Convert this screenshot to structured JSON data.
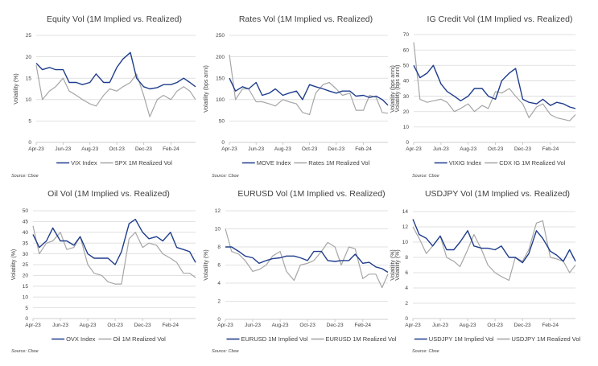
{
  "colors": {
    "implied": "#1f3d8c",
    "realized": "#a6a6a6",
    "grid": "#d9d9d9"
  },
  "chart_data": [
    {
      "type": "line",
      "title": "Equity Vol (1M Implied vs. Realized)",
      "ylabel": "Volatility (%)",
      "ylim": [
        0,
        25
      ],
      "yticks": [
        "0",
        "5",
        "10",
        "15",
        "20",
        "25"
      ],
      "xticks": [
        "Apr-23",
        "Jun-23",
        "Aug-23",
        "Oct-23",
        "Dec-23",
        "Feb-24"
      ],
      "grid": true,
      "legend": "bottom",
      "source": "Source: Cboe",
      "x": [
        "2023-04-01",
        "2023-04-15",
        "2023-05-01",
        "2023-05-15",
        "2023-06-01",
        "2023-06-15",
        "2023-07-01",
        "2023-07-15",
        "2023-08-01",
        "2023-08-15",
        "2023-09-01",
        "2023-09-15",
        "2023-10-01",
        "2023-10-15",
        "2023-11-01",
        "2023-11-15",
        "2023-12-01",
        "2023-12-15",
        "2024-01-01",
        "2024-01-15",
        "2024-02-01",
        "2024-02-15",
        "2024-03-01",
        "2024-03-15",
        "2024-03-28"
      ],
      "series": [
        {
          "name": "VIX Index",
          "values": [
            18.5,
            17,
            17.5,
            17,
            17,
            14,
            14,
            13.5,
            14,
            16,
            14,
            14,
            17.5,
            19.5,
            21,
            15,
            13,
            12.5,
            12.8,
            13.5,
            13.5,
            14,
            15,
            14,
            13
          ]
        },
        {
          "name": "SPX 1M Realized Vol",
          "values": [
            18,
            10,
            12,
            13,
            15,
            12,
            11,
            10,
            9,
            8.5,
            11,
            12.5,
            12,
            13,
            14,
            16,
            11,
            6,
            10,
            11,
            10,
            12,
            13,
            12,
            10
          ]
        }
      ]
    },
    {
      "type": "line",
      "title": "Rates Vol (1M Implied vs. Realized)",
      "ylabel": "Volatility (bps anni)",
      "secondary_ylabel": "Volatility (bps anni)",
      "ylim": [
        0,
        250
      ],
      "yticks": [
        "0",
        "50",
        "100",
        "150",
        "200",
        "250"
      ],
      "xticks": [
        "Apr-23",
        "Jun-23",
        "Aug-23",
        "Oct-23",
        "Dec-23",
        "Feb-24"
      ],
      "grid": true,
      "legend": "bottom",
      "source": "Source: Cboe",
      "x": [
        "2023-04-01",
        "2023-04-15",
        "2023-05-01",
        "2023-05-15",
        "2023-06-01",
        "2023-06-15",
        "2023-07-01",
        "2023-07-15",
        "2023-08-01",
        "2023-08-15",
        "2023-09-01",
        "2023-09-15",
        "2023-10-01",
        "2023-10-15",
        "2023-11-01",
        "2023-11-15",
        "2023-12-01",
        "2023-12-15",
        "2024-01-01",
        "2024-01-15",
        "2024-02-01",
        "2024-02-15",
        "2024-03-01",
        "2024-03-15",
        "2024-03-28"
      ],
      "series": [
        {
          "name": "MOVE Index",
          "values": [
            150,
            120,
            130,
            125,
            140,
            110,
            115,
            125,
            110,
            115,
            120,
            100,
            135,
            130,
            125,
            120,
            115,
            120,
            120,
            108,
            110,
            105,
            108,
            100,
            87
          ]
        },
        {
          "name": "Rates 1M Realized Vol",
          "values": [
            205,
            100,
            125,
            125,
            95,
            95,
            90,
            85,
            100,
            95,
            90,
            70,
            65,
            115,
            135,
            140,
            125,
            110,
            115,
            75,
            75,
            110,
            105,
            70,
            68
          ]
        }
      ]
    },
    {
      "type": "line",
      "title": "IG Credit Vol (1M Implied vs. Realized)",
      "ylabel": "Volatility (bps anni)",
      "ylim": [
        0,
        70
      ],
      "yticks": [
        "0",
        "10",
        "20",
        "30",
        "40",
        "50",
        "60",
        "70"
      ],
      "xticks": [
        "Apr-23",
        "Jun-23",
        "Aug-23",
        "Oct-23",
        "Dec-23",
        "Feb-24"
      ],
      "grid": true,
      "legend": "bottom",
      "source": "Source: Cboe",
      "x": [
        "2023-04-01",
        "2023-04-15",
        "2023-05-01",
        "2023-05-15",
        "2023-06-01",
        "2023-06-15",
        "2023-07-01",
        "2023-07-15",
        "2023-08-01",
        "2023-08-15",
        "2023-09-01",
        "2023-09-15",
        "2023-10-01",
        "2023-10-15",
        "2023-11-01",
        "2023-11-15",
        "2023-12-01",
        "2023-12-15",
        "2024-01-01",
        "2024-01-15",
        "2024-02-01",
        "2024-02-15",
        "2024-03-01",
        "2024-03-15",
        "2024-03-28"
      ],
      "series": [
        {
          "name": "VIXIG Index",
          "values": [
            50,
            42,
            45,
            50,
            38,
            33,
            30,
            27,
            30,
            35,
            35,
            30,
            28,
            40,
            45,
            48,
            28,
            26,
            25,
            28,
            24,
            26,
            25,
            23,
            22
          ]
        },
        {
          "name": "CDX IG 1M Realized Vol",
          "values": [
            65,
            28,
            26,
            27,
            28,
            26,
            20,
            22,
            25,
            20,
            24,
            22,
            33,
            32,
            35,
            30,
            25,
            16,
            23,
            25,
            18,
            16,
            15,
            14,
            18
          ]
        }
      ]
    },
    {
      "type": "line",
      "title": "Oil Vol (1M Implied vs. Realized)",
      "ylabel": "Volatility (%)",
      "ylim": [
        0,
        50
      ],
      "yticks": [
        "0",
        "5",
        "10",
        "15",
        "20",
        "25",
        "30",
        "35",
        "40",
        "45",
        "50"
      ],
      "xticks": [
        "Apr-23",
        "Jun-23",
        "Aug-23",
        "Oct-23",
        "Dec-23",
        "Feb-24"
      ],
      "grid": true,
      "legend": "bottom",
      "source": "Source: Cboe",
      "x": [
        "2023-04-01",
        "2023-04-15",
        "2023-05-01",
        "2023-05-15",
        "2023-06-01",
        "2023-06-15",
        "2023-07-01",
        "2023-07-15",
        "2023-08-01",
        "2023-08-15",
        "2023-09-01",
        "2023-09-15",
        "2023-10-01",
        "2023-10-15",
        "2023-11-01",
        "2023-11-15",
        "2023-12-01",
        "2023-12-15",
        "2024-01-01",
        "2024-01-15",
        "2024-02-01",
        "2024-02-15",
        "2024-03-01",
        "2024-03-15",
        "2024-03-28"
      ],
      "series": [
        {
          "name": "OVX Index",
          "values": [
            39,
            33,
            36,
            42,
            36,
            36,
            34,
            38,
            30,
            28,
            28,
            28,
            25,
            31,
            44,
            46,
            40,
            37,
            38,
            36,
            40,
            33,
            32,
            31,
            26
          ]
        },
        {
          "name": "Oil 1M Realized Vol",
          "values": [
            43,
            30,
            35,
            36,
            40,
            32,
            33,
            38,
            25,
            21,
            20,
            17,
            16,
            16,
            37,
            40,
            33,
            35,
            34,
            30,
            28,
            26,
            21,
            21,
            19
          ]
        }
      ]
    },
    {
      "type": "line",
      "title": "EURUSD Vol (1M Implied vs. Realized)",
      "ylabel": "Volatility (%)",
      "secondary_ylabel": "Volatility (%)",
      "ylim": [
        0,
        12
      ],
      "yticks": [
        "0",
        "2",
        "4",
        "6",
        "8",
        "10",
        "12"
      ],
      "xticks": [
        "Apr-23",
        "Jun-23",
        "Aug-23",
        "Oct-23",
        "Dec-23",
        "Feb-24"
      ],
      "grid": true,
      "legend": "bottom",
      "source": "Source: Cboe",
      "x": [
        "2023-04-01",
        "2023-04-15",
        "2023-05-01",
        "2023-05-15",
        "2023-06-01",
        "2023-06-15",
        "2023-07-01",
        "2023-07-15",
        "2023-08-01",
        "2023-08-15",
        "2023-09-01",
        "2023-09-15",
        "2023-10-01",
        "2023-10-15",
        "2023-11-01",
        "2023-11-15",
        "2023-12-01",
        "2023-12-15",
        "2024-01-01",
        "2024-01-15",
        "2024-02-01",
        "2024-02-15",
        "2024-03-01",
        "2024-03-15",
        "2024-03-28"
      ],
      "series": [
        {
          "name": "EURUSD 1M Implied Vol",
          "values": [
            8,
            8,
            7.5,
            7,
            6.8,
            6.2,
            6.5,
            6.7,
            6.8,
            7,
            7,
            6.8,
            6.5,
            7.5,
            7.5,
            6.5,
            6.4,
            6.5,
            6.5,
            7.2,
            6.2,
            6.3,
            5.8,
            5.6,
            5.2
          ]
        },
        {
          "name": "EURUSD 1M Realized Vol",
          "values": [
            10,
            7.5,
            7.2,
            6.5,
            5.3,
            5.5,
            6,
            7,
            7.5,
            5.3,
            4.3,
            6,
            6.2,
            6.5,
            7.5,
            8.5,
            8,
            6,
            8,
            7.8,
            4.5,
            5,
            5,
            3.5,
            5
          ]
        }
      ]
    },
    {
      "type": "line",
      "title": "USDJPY Vol (1M Implied vs. Realized)",
      "ylabel": "Volatility (%)",
      "ylim": [
        0,
        14
      ],
      "yticks": [
        "0",
        "2",
        "4",
        "6",
        "8",
        "10",
        "12",
        "14"
      ],
      "xticks": [
        "Apr-23",
        "Jun-23",
        "Aug-23",
        "Oct-23",
        "Dec-23",
        "Feb-24"
      ],
      "grid": true,
      "legend": "bottom",
      "source": "Source: Cboe",
      "x": [
        "2023-04-01",
        "2023-04-15",
        "2023-05-01",
        "2023-05-15",
        "2023-06-01",
        "2023-06-15",
        "2023-07-01",
        "2023-07-15",
        "2023-08-01",
        "2023-08-15",
        "2023-09-01",
        "2023-09-15",
        "2023-10-01",
        "2023-10-15",
        "2023-11-01",
        "2023-11-15",
        "2023-12-01",
        "2023-12-15",
        "2024-01-01",
        "2024-01-15",
        "2024-02-01",
        "2024-02-15",
        "2024-03-01",
        "2024-03-15",
        "2024-03-28"
      ],
      "series": [
        {
          "name": "USDJPY 1M Implied Vol",
          "values": [
            13,
            11,
            10.5,
            9.5,
            10.8,
            9,
            9,
            10,
            11.5,
            9.5,
            9.2,
            9.2,
            9,
            9.5,
            8,
            8,
            7.3,
            8.5,
            11.5,
            10.5,
            8.8,
            8.3,
            7.5,
            9,
            7.5
          ]
        },
        {
          "name": "USDJPY 1M Realized Vol",
          "values": [
            12,
            10.5,
            8.5,
            9.5,
            10.8,
            8,
            7.5,
            6.8,
            9,
            11,
            9,
            7,
            6,
            5.5,
            5,
            8,
            7.5,
            9,
            12.5,
            12.8,
            8,
            7.8,
            7.5,
            6,
            7
          ]
        }
      ]
    }
  ]
}
